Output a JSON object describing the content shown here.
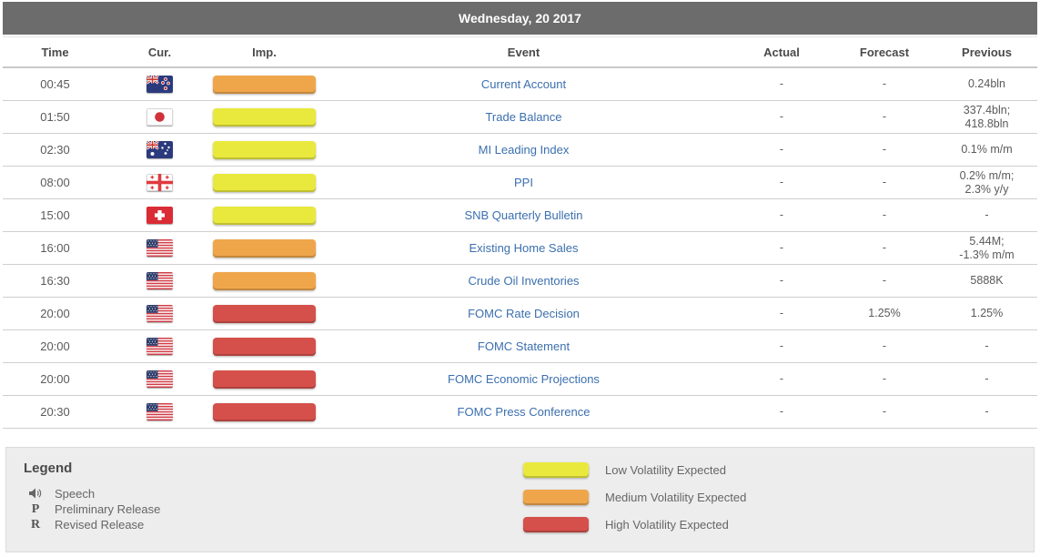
{
  "title_bar": {
    "date": "Wednesday, 20 2017"
  },
  "table": {
    "columns": {
      "time": "Time",
      "currency": "Cur.",
      "importance": "Imp.",
      "event": "Event",
      "actual": "Actual",
      "forecast": "Forecast",
      "previous": "Previous"
    },
    "rows": [
      {
        "time": "00:45",
        "country": "new-zealand",
        "importance": "medium",
        "event": "Current Account",
        "actual": "-",
        "forecast": "-",
        "previous": "0.24bln"
      },
      {
        "time": "01:50",
        "country": "japan",
        "importance": "low",
        "event": "Trade Balance",
        "actual": "-",
        "forecast": "-",
        "previous": "337.4bln;\n418.8bln"
      },
      {
        "time": "02:30",
        "country": "australia",
        "importance": "low",
        "event": "MI Leading Index",
        "actual": "-",
        "forecast": "-",
        "previous": "0.1% m/m"
      },
      {
        "time": "08:00",
        "country": "georgia",
        "importance": "low",
        "event": "PPI",
        "actual": "-",
        "forecast": "-",
        "previous": "0.2% m/m;\n2.3% y/y"
      },
      {
        "time": "15:00",
        "country": "switzerland",
        "importance": "low",
        "event": "SNB Quarterly Bulletin",
        "actual": "-",
        "forecast": "-",
        "previous": "-"
      },
      {
        "time": "16:00",
        "country": "united-states",
        "importance": "medium",
        "event": "Existing Home Sales",
        "actual": "-",
        "forecast": "-",
        "previous": "5.44M;\n-1.3% m/m"
      },
      {
        "time": "16:30",
        "country": "united-states",
        "importance": "medium",
        "event": "Crude Oil Inventories",
        "actual": "-",
        "forecast": "-",
        "previous": "5888K"
      },
      {
        "time": "20:00",
        "country": "united-states",
        "importance": "high",
        "event": "FOMC Rate Decision",
        "actual": "-",
        "forecast": "1.25%",
        "previous": "1.25%"
      },
      {
        "time": "20:00",
        "country": "united-states",
        "importance": "high",
        "event": "FOMC Statement",
        "actual": "-",
        "forecast": "-",
        "previous": "-"
      },
      {
        "time": "20:00",
        "country": "united-states",
        "importance": "high",
        "event": "FOMC Economic Projections",
        "actual": "-",
        "forecast": "-",
        "previous": "-"
      },
      {
        "time": "20:30",
        "country": "united-states",
        "importance": "high",
        "event": "FOMC Press Conference",
        "actual": "-",
        "forecast": "-",
        "previous": "-"
      }
    ]
  },
  "legend": {
    "title": "Legend",
    "symbols": [
      {
        "icon": "speaker-icon",
        "glyph": "",
        "label": "Speech"
      },
      {
        "icon": "letter-p-icon",
        "glyph": "P",
        "label": "Preliminary Release"
      },
      {
        "icon": "letter-r-icon",
        "glyph": "R",
        "label": "Revised Release"
      }
    ],
    "volatility": [
      {
        "level": "low",
        "label": "Low Volatility Expected"
      },
      {
        "level": "medium",
        "label": "Medium Volatility Expected"
      },
      {
        "level": "high",
        "label": "High Volatility Expected"
      }
    ]
  },
  "colors": {
    "low": "#e9e93d",
    "medium": "#efa64b",
    "high": "#d5504b",
    "link": "#3b6fae",
    "title_bar": "#6c6c6c"
  }
}
